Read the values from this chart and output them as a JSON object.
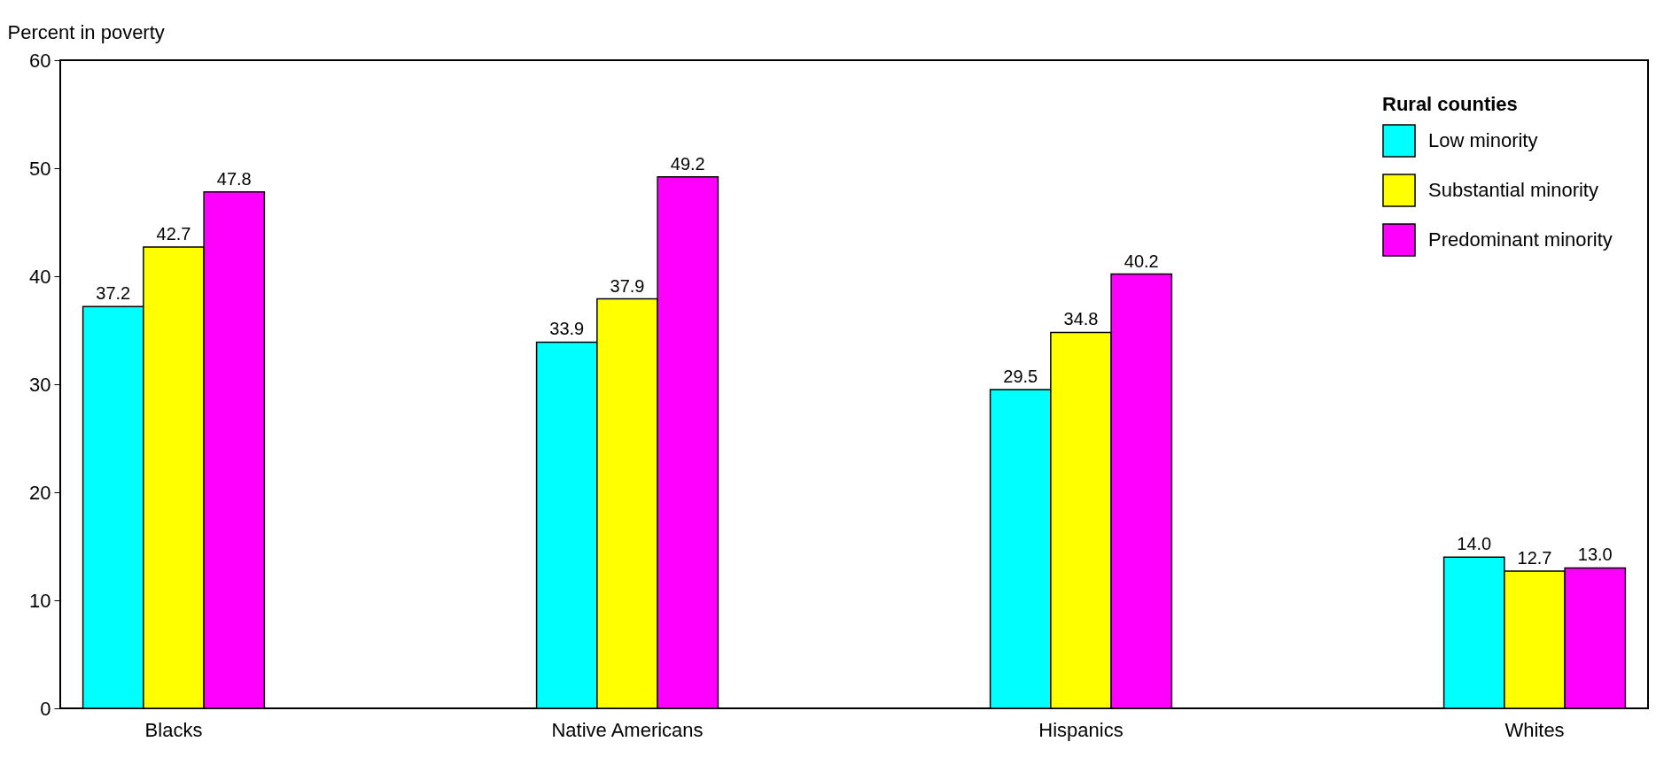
{
  "chart_data": {
    "type": "bar",
    "ylabel": "Percent in poverty",
    "legend_title": "Rural counties",
    "categories": [
      "Blacks",
      "Native Americans",
      "Hispanics",
      "Whites"
    ],
    "series": [
      {
        "name": "Low minority",
        "color": "#00ffff",
        "values": [
          37.2,
          33.9,
          29.5,
          14.0
        ],
        "value_labels": [
          "37.2",
          "33.9",
          "29.5",
          "14.0"
        ]
      },
      {
        "name": "Substantial minority",
        "color": "#ffff00",
        "values": [
          42.7,
          37.9,
          34.8,
          12.7
        ],
        "value_labels": [
          "42.7",
          "37.9",
          "34.8",
          "12.7"
        ]
      },
      {
        "name": "Predominant minority",
        "color": "#ff00ff",
        "values": [
          47.8,
          49.2,
          40.2,
          13.0
        ],
        "value_labels": [
          "47.8",
          "49.2",
          "40.2",
          "13.0"
        ]
      }
    ],
    "ylim": [
      0,
      60
    ],
    "yticks": [
      0,
      10,
      20,
      30,
      40,
      50,
      60
    ],
    "legend": "top right"
  }
}
